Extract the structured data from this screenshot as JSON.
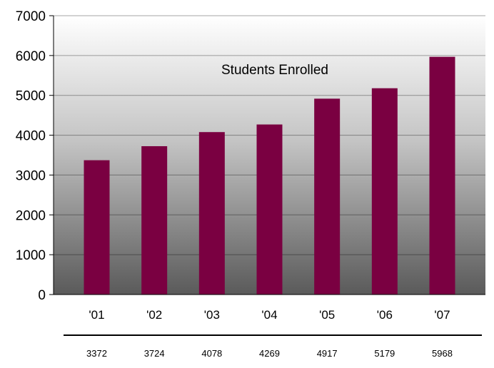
{
  "chart_data": {
    "type": "bar",
    "title": "Students Enrolled",
    "categories": [
      "'01",
      "'02",
      "'03",
      "'04",
      "'05",
      "'06",
      "'07"
    ],
    "values": [
      3372,
      3724,
      4078,
      4269,
      4917,
      5179,
      5968
    ],
    "table_values": [
      "3372",
      "3724",
      "4078",
      "4269",
      "4917",
      "5179",
      "5968"
    ],
    "ylim": [
      0,
      7000
    ],
    "yticks": [
      0,
      1000,
      2000,
      3000,
      4000,
      5000,
      6000,
      7000
    ],
    "ytick_labels": [
      "0",
      "1000",
      "2000",
      "3000",
      "4000",
      "5000",
      "6000",
      "7000"
    ],
    "grid": true,
    "bar_color": "#7a0041",
    "plot_background": "gradient light-to-dark gray"
  }
}
